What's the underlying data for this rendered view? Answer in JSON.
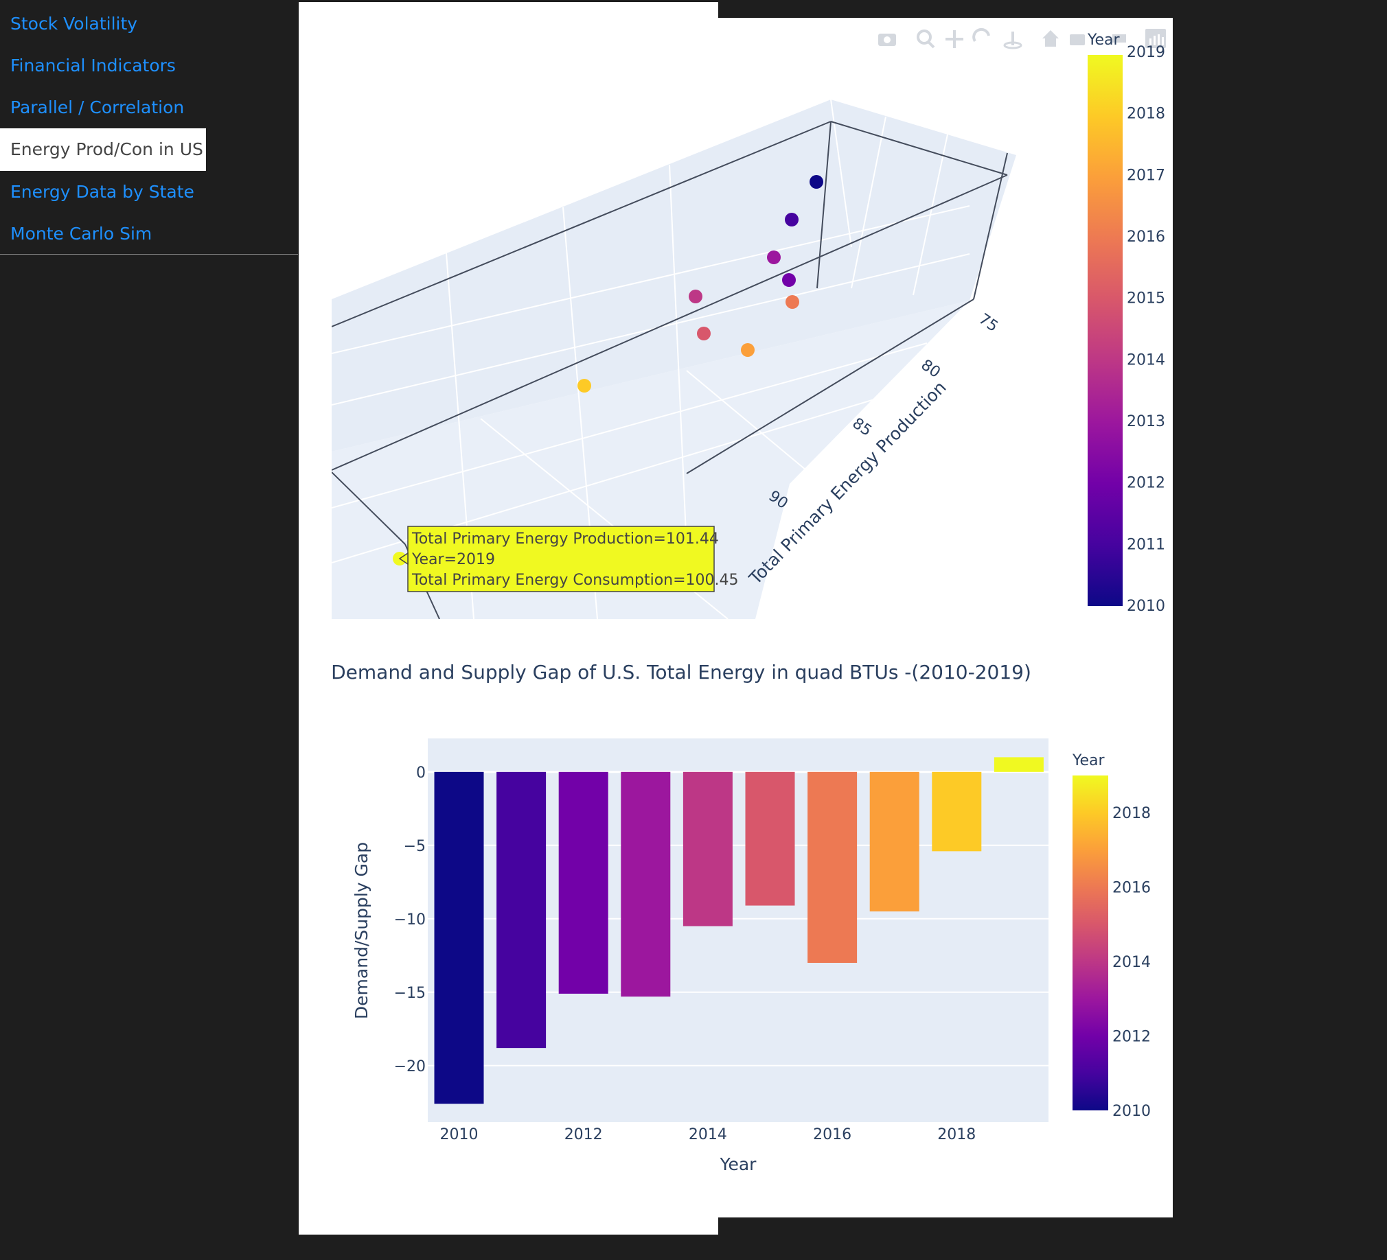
{
  "nav": {
    "items": [
      {
        "label": "Stock Volatility",
        "active": false
      },
      {
        "label": "Financial Indicators",
        "active": false
      },
      {
        "label": "Parallel / Correlation",
        "active": false
      },
      {
        "label": "Energy Prod/Con in US",
        "active": true
      },
      {
        "label": "Energy Data by State",
        "active": false
      },
      {
        "label": "Monte Carlo Sim",
        "active": false
      }
    ]
  },
  "modebar": {
    "icons": [
      "camera-icon",
      "zoom-icon",
      "pan-icon",
      "orbit-rotation-icon",
      "turntable-rotation-icon",
      "reset-camera-icon",
      "last-save-camera-icon",
      "toggle-hover-icon",
      "plotly-logo-icon"
    ]
  },
  "chart_data": [
    {
      "type": "scatter3d",
      "title": "",
      "axes": {
        "y_label": "Total Primary Energy Production",
        "y_ticks": [
          75,
          80,
          85,
          90
        ]
      },
      "colorbar": {
        "title": "Year",
        "range": [
          2010,
          2019
        ],
        "ticks": [
          2010,
          2011,
          2012,
          2013,
          2014,
          2015,
          2016,
          2017,
          2018,
          2019
        ],
        "colorscale": [
          "#0d0887",
          "#46039f",
          "#7201a8",
          "#9c179e",
          "#bd3786",
          "#d8576b",
          "#ed7953",
          "#fb9f3a",
          "#fdca26",
          "#f0f921"
        ]
      },
      "points": [
        {
          "year": 2010
        },
        {
          "year": 2011
        },
        {
          "year": 2012
        },
        {
          "year": 2013
        },
        {
          "year": 2014
        },
        {
          "year": 2015
        },
        {
          "year": 2016
        },
        {
          "year": 2017
        },
        {
          "year": 2018
        },
        {
          "year": 2019
        }
      ],
      "hover": {
        "lines": [
          "Total Primary Energy Production=101.44",
          "Year=2019",
          "Total Primary Energy Consumption=100.45"
        ]
      }
    },
    {
      "type": "bar",
      "title": "Demand and Supply Gap of U.S. Total Energy in quad BTUs -(2010-2019)",
      "xlabel": "Year",
      "ylabel": "Demand/Supply Gap",
      "x": [
        2010,
        2011,
        2012,
        2013,
        2014,
        2015,
        2016,
        2017,
        2018,
        2019
      ],
      "values": [
        -22.6,
        -18.8,
        -15.1,
        -15.3,
        -10.5,
        -9.1,
        -13.0,
        -9.5,
        -5.4,
        1.0
      ],
      "xticks": [
        2010,
        2012,
        2014,
        2016,
        2018
      ],
      "yticks": [
        0,
        -5,
        -10,
        -15,
        -20
      ],
      "ylim": [
        -24,
        2.3
      ],
      "grid": true,
      "colorbar": {
        "title": "Year",
        "range": [
          2010,
          2019
        ],
        "ticks": [
          2010,
          2012,
          2014,
          2016,
          2018
        ],
        "colorscale": [
          "#0d0887",
          "#46039f",
          "#7201a8",
          "#9c179e",
          "#bd3786",
          "#d8576b",
          "#ed7953",
          "#fb9f3a",
          "#fdca26",
          "#f0f921"
        ]
      }
    }
  ]
}
